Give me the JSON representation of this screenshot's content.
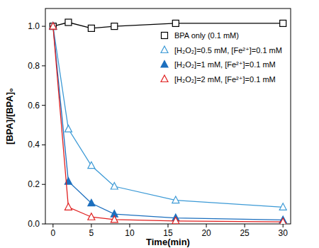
{
  "chart_data": {
    "type": "line",
    "x_label": "Time(min)",
    "y_label": "[BPA]/[BPA]₀",
    "x": [
      0,
      2,
      5,
      8,
      16,
      30
    ],
    "xlim": [
      -1,
      31
    ],
    "xticks": [
      0,
      5,
      10,
      15,
      20,
      25,
      30
    ],
    "ylim": [
      0,
      1.09
    ],
    "yticks": [
      {
        "value": 0,
        "label": "0.0"
      },
      0.2,
      0.4,
      0.6,
      0.8,
      {
        "value": 1,
        "label": "1.0"
      }
    ],
    "legend": "upper right",
    "series": [
      {
        "name": "BPA only (0.1 mM)",
        "color": "#000000",
        "marker": "square-open",
        "values": [
          1.0,
          1.02,
          0.99,
          1.0,
          1.015,
          1.015
        ]
      },
      {
        "name": "[H₂O₂]=0.5 mM, [Fe²⁺]=0.1 mM",
        "color": "#3c9ad6",
        "marker": "triangle-open",
        "values": [
          1.0,
          0.48,
          0.295,
          0.19,
          0.12,
          0.085
        ]
      },
      {
        "name": "[H₂O₂]=1 mM, [Fe²⁺]=0.1 mM",
        "color": "#1c6fbe",
        "marker": "triangle",
        "values": [
          1.0,
          0.215,
          0.105,
          0.05,
          0.03,
          0.02
        ]
      },
      {
        "name": "[H₂O₂]=2 mM, [Fe²⁺]=0.1 mM",
        "color": "#e02020",
        "marker": "triangle-open",
        "values": [
          1.0,
          0.085,
          0.035,
          0.022,
          0.015,
          0.01
        ]
      }
    ]
  }
}
